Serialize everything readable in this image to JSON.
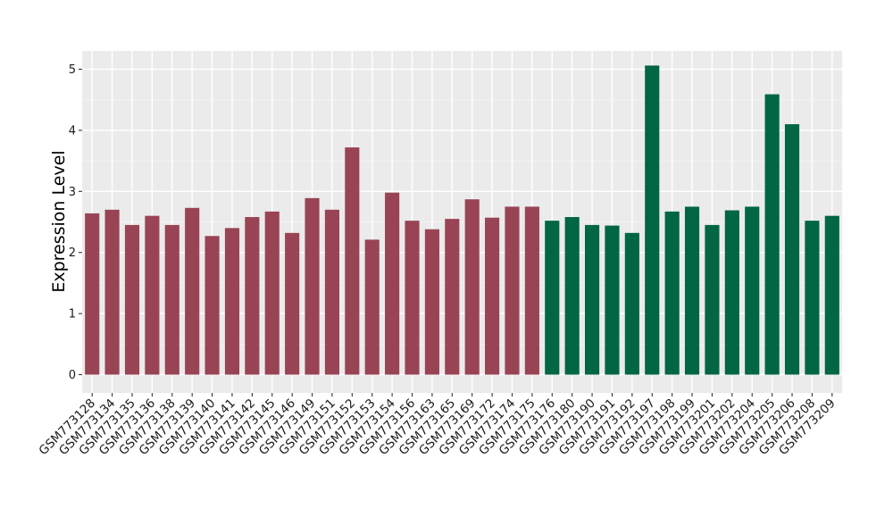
{
  "chart_data": {
    "type": "bar",
    "title": "",
    "xlabel": "",
    "ylabel": "Expression Level",
    "ylim": [
      -0.3,
      5.3
    ],
    "yticks": [
      0,
      1,
      2,
      3,
      4,
      5
    ],
    "grid": true,
    "background": "#ebebeb",
    "group_colors": [
      "#994455",
      "#006644"
    ],
    "categories": [
      "GSM773128",
      "GSM773134",
      "GSM773135",
      "GSM773136",
      "GSM773138",
      "GSM773139",
      "GSM773140",
      "GSM773141",
      "GSM773142",
      "GSM773145",
      "GSM773146",
      "GSM773149",
      "GSM773151",
      "GSM773152",
      "GSM773153",
      "GSM773154",
      "GSM773156",
      "GSM773163",
      "GSM773165",
      "GSM773169",
      "GSM773172",
      "GSM773174",
      "GSM773175",
      "GSM773176",
      "GSM773180",
      "GSM773190",
      "GSM773191",
      "GSM773192",
      "GSM773197",
      "GSM773198",
      "GSM773199",
      "GSM773201",
      "GSM773202",
      "GSM773204",
      "GSM773205",
      "GSM773206",
      "GSM773208",
      "GSM773209"
    ],
    "values": [
      2.64,
      2.7,
      2.45,
      2.6,
      2.45,
      2.73,
      2.27,
      2.4,
      2.58,
      2.67,
      2.32,
      2.89,
      2.7,
      3.72,
      2.21,
      2.98,
      2.52,
      2.38,
      2.55,
      2.87,
      2.57,
      2.75,
      2.75,
      2.52,
      2.58,
      2.45,
      2.44,
      2.32,
      5.06,
      2.67,
      2.75,
      2.45,
      2.69,
      2.75,
      4.59,
      4.1,
      2.52,
      2.6
    ],
    "groups": [
      0,
      0,
      0,
      0,
      0,
      0,
      0,
      0,
      0,
      0,
      0,
      0,
      0,
      0,
      0,
      0,
      0,
      0,
      0,
      0,
      0,
      0,
      0,
      1,
      1,
      1,
      1,
      1,
      1,
      1,
      1,
      1,
      1,
      1,
      1,
      1,
      1,
      1
    ]
  }
}
